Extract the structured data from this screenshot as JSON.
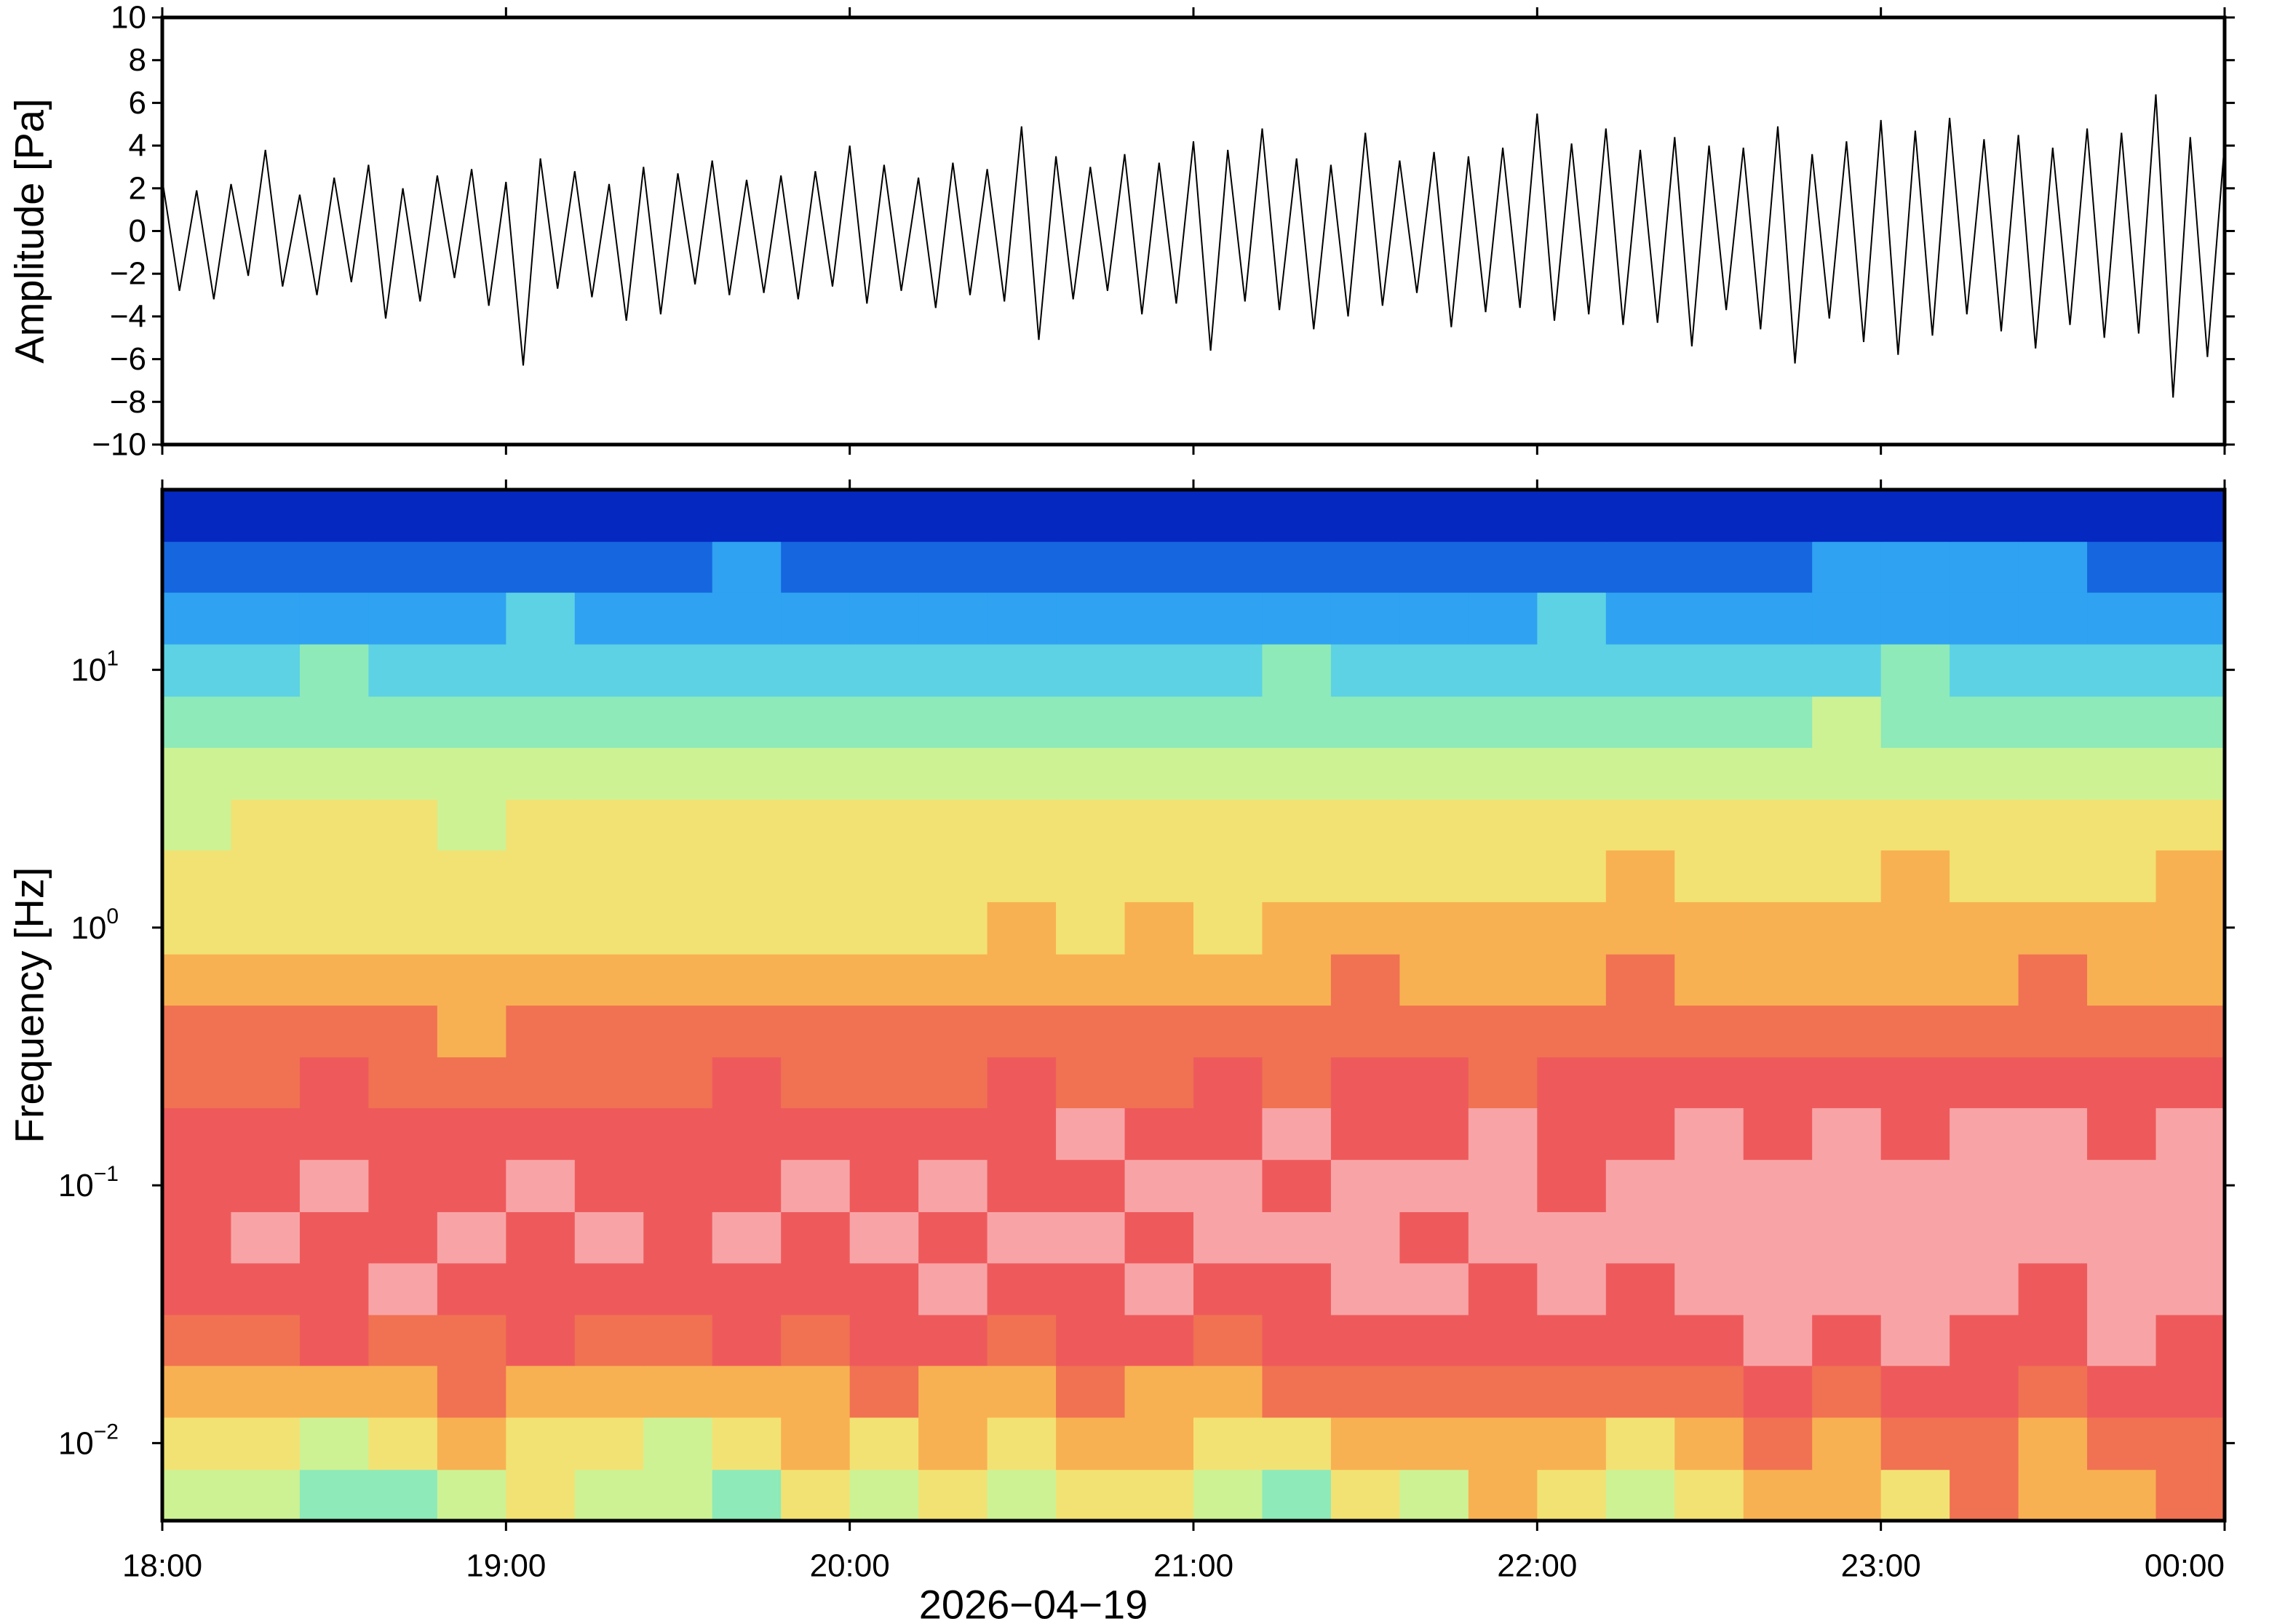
{
  "chart_data": [
    {
      "type": "line",
      "ylabel": "Amplitude [Pa]",
      "color": "#000000",
      "xlim": [
        18,
        24
      ],
      "ylim": [
        -10,
        10
      ],
      "yticks": [
        {
          "value": -10,
          "label": "−10"
        },
        {
          "value": -8,
          "label": "−8"
        },
        {
          "value": -6,
          "label": "−6"
        },
        {
          "value": -4,
          "label": "−4"
        },
        {
          "value": -2,
          "label": "−2"
        },
        0,
        2,
        4,
        6,
        8,
        10
      ],
      "x": [
        18,
        18.05,
        18.1,
        18.15,
        18.2,
        18.25,
        18.3,
        18.35,
        18.4,
        18.45,
        18.5,
        18.55,
        18.6,
        18.65,
        18.7,
        18.75,
        18.8,
        18.85,
        18.9,
        18.95,
        19,
        19.05,
        19.1,
        19.15,
        19.2,
        19.25,
        19.3,
        19.35,
        19.4,
        19.45,
        19.5,
        19.55,
        19.6,
        19.65,
        19.7,
        19.75,
        19.8,
        19.85,
        19.9,
        19.95,
        20,
        20.05,
        20.1,
        20.15,
        20.2,
        20.25,
        20.3,
        20.35,
        20.4,
        20.45,
        20.5,
        20.55,
        20.6,
        20.65,
        20.7,
        20.75,
        20.8,
        20.85,
        20.9,
        20.95,
        21,
        21.05,
        21.1,
        21.15,
        21.2,
        21.25,
        21.3,
        21.35,
        21.4,
        21.45,
        21.5,
        21.55,
        21.6,
        21.65,
        21.7,
        21.75,
        21.8,
        21.85,
        21.9,
        21.95,
        22,
        22.05,
        22.1,
        22.15,
        22.2,
        22.25,
        22.3,
        22.35,
        22.4,
        22.45,
        22.5,
        22.55,
        22.6,
        22.65,
        22.7,
        22.75,
        22.8,
        22.85,
        22.9,
        22.95,
        23,
        23.05,
        23.1,
        23.15,
        23.2,
        23.25,
        23.3,
        23.35,
        23.4,
        23.45,
        23.5,
        23.55,
        23.6,
        23.65,
        23.7,
        23.75,
        23.8,
        23.85,
        23.9,
        23.95,
        24
      ],
      "values": [
        2.4,
        -2.8,
        1.9,
        -3.2,
        2.2,
        -2.1,
        3.8,
        -2.6,
        1.7,
        -3.0,
        2.5,
        -2.4,
        3.1,
        -4.1,
        2.0,
        -3.3,
        2.6,
        -2.2,
        2.9,
        -3.5,
        2.3,
        -6.3,
        3.4,
        -2.7,
        2.8,
        -3.1,
        2.2,
        -4.2,
        3.0,
        -3.9,
        2.7,
        -2.5,
        3.3,
        -3.0,
        2.4,
        -2.9,
        2.6,
        -3.2,
        2.8,
        -2.6,
        4.0,
        -3.4,
        3.1,
        -2.8,
        2.5,
        -3.6,
        3.2,
        -3.0,
        2.9,
        -3.3,
        4.9,
        -5.1,
        3.5,
        -3.2,
        3.0,
        -2.8,
        3.6,
        -3.9,
        3.2,
        -3.4,
        4.2,
        -5.6,
        3.8,
        -3.3,
        4.8,
        -3.7,
        3.4,
        -4.6,
        3.1,
        -4.0,
        4.6,
        -3.5,
        3.3,
        -2.9,
        3.7,
        -4.5,
        3.5,
        -3.8,
        3.9,
        -3.6,
        5.5,
        -4.2,
        4.1,
        -3.9,
        4.8,
        -4.4,
        3.8,
        -4.3,
        4.4,
        -5.4,
        4.0,
        -3.7,
        3.9,
        -4.6,
        4.9,
        -6.2,
        3.6,
        -4.1,
        4.2,
        -5.2,
        5.2,
        -5.8,
        4.7,
        -4.9,
        5.3,
        -3.9,
        4.3,
        -4.7,
        4.5,
        -5.5,
        3.9,
        -4.4,
        4.8,
        -5.0,
        4.6,
        -4.8,
        6.4,
        -7.8,
        4.4,
        -5.9,
        4.1
      ]
    },
    {
      "type": "heatmap",
      "ylabel": "Frequency [Hz]",
      "xlabel": "2026−04−19",
      "xlim": [
        18,
        24
      ],
      "ylim": [
        0.005,
        50
      ],
      "ylog": true,
      "xticks": [
        {
          "value": 18,
          "label": "18:00"
        },
        {
          "value": 19,
          "label": "19:00"
        },
        {
          "value": 20,
          "label": "20:00"
        },
        {
          "value": 21,
          "label": "21:00"
        },
        {
          "value": 22,
          "label": "22:00"
        },
        {
          "value": 23,
          "label": "23:00"
        },
        {
          "value": 24,
          "label": "00:00"
        }
      ],
      "yticks": [
        {
          "value": 0.01,
          "label": "10",
          "exponent": "−2"
        },
        {
          "value": 0.1,
          "label": "10",
          "exponent": "−1"
        },
        {
          "value": 1,
          "label": "10",
          "exponent": "0"
        },
        {
          "value": 10,
          "label": "10",
          "exponent": "1"
        }
      ],
      "x": [
        18,
        18.2,
        18.4,
        18.6,
        18.8,
        19,
        19.2,
        19.4,
        19.6,
        19.8,
        20,
        20.2,
        20.4,
        20.6,
        20.8,
        21,
        21.2,
        21.4,
        21.6,
        21.8,
        22,
        22.2,
        22.4,
        22.6,
        22.8,
        23,
        23.2,
        23.4,
        23.6,
        23.8,
        24
      ],
      "y": [
        0.005,
        0.0079,
        0.0126,
        0.02,
        0.0315,
        0.05,
        0.079,
        0.126,
        0.2,
        0.315,
        0.5,
        0.79,
        1.26,
        2,
        3.15,
        5,
        7.9,
        12.6,
        20,
        31.5,
        50
      ],
      "colorscale": [
        "#0428c0",
        "#1666e0",
        "#2fa2f2",
        "#5cd2e4",
        "#8eeab8",
        "#cdf294",
        "#f2e274",
        "#f8b152",
        "#f07252",
        "#ee5a5c",
        "#f8a4a6"
      ],
      "z": [
        [
          5,
          5,
          4,
          4,
          5,
          6,
          5,
          5,
          4,
          6,
          5,
          6,
          5,
          6,
          6,
          5,
          4,
          6,
          5,
          7,
          6,
          5,
          6,
          7,
          7,
          6,
          8,
          7,
          7,
          8
        ],
        [
          6,
          6,
          5,
          6,
          7,
          6,
          6,
          5,
          6,
          7,
          6,
          7,
          6,
          7,
          7,
          6,
          6,
          7,
          7,
          7,
          7,
          6,
          7,
          8,
          7,
          8,
          8,
          7,
          8,
          8
        ],
        [
          7,
          7,
          7,
          7,
          8,
          7,
          7,
          7,
          7,
          7,
          8,
          7,
          7,
          8,
          7,
          7,
          8,
          8,
          8,
          8,
          8,
          8,
          8,
          9,
          8,
          9,
          9,
          8,
          9,
          9
        ],
        [
          8,
          8,
          9,
          8,
          8,
          9,
          8,
          8,
          9,
          8,
          9,
          9,
          8,
          9,
          9,
          8,
          9,
          9,
          9,
          9,
          9,
          9,
          9,
          10,
          9,
          10,
          9,
          9,
          10,
          9
        ],
        [
          9,
          9,
          9,
          10,
          9,
          9,
          9,
          9,
          9,
          9,
          9,
          10,
          9,
          9,
          10,
          9,
          9,
          10,
          10,
          9,
          10,
          9,
          10,
          10,
          10,
          10,
          10,
          9,
          10,
          10
        ],
        [
          9,
          10,
          9,
          9,
          10,
          9,
          10,
          9,
          10,
          9,
          10,
          9,
          10,
          10,
          9,
          10,
          10,
          10,
          9,
          10,
          10,
          10,
          10,
          10,
          10,
          10,
          10,
          10,
          10,
          10
        ],
        [
          9,
          9,
          10,
          9,
          9,
          10,
          9,
          9,
          9,
          10,
          9,
          10,
          9,
          9,
          10,
          10,
          9,
          10,
          10,
          10,
          9,
          10,
          10,
          10,
          10,
          10,
          10,
          10,
          10,
          10
        ],
        [
          9,
          9,
          9,
          9,
          9,
          9,
          9,
          9,
          9,
          9,
          9,
          9,
          9,
          10,
          9,
          9,
          10,
          9,
          9,
          10,
          9,
          9,
          10,
          9,
          10,
          9,
          10,
          10,
          9,
          10
        ],
        [
          8,
          8,
          9,
          8,
          8,
          8,
          8,
          8,
          9,
          8,
          8,
          8,
          9,
          8,
          8,
          9,
          8,
          9,
          9,
          8,
          9,
          9,
          9,
          9,
          9,
          9,
          9,
          9,
          9,
          9
        ],
        [
          8,
          8,
          8,
          8,
          7,
          8,
          8,
          8,
          8,
          8,
          8,
          8,
          8,
          8,
          8,
          8,
          8,
          8,
          8,
          8,
          8,
          8,
          8,
          8,
          8,
          8,
          8,
          8,
          8,
          8
        ],
        [
          7,
          7,
          7,
          7,
          7,
          7,
          7,
          7,
          7,
          7,
          7,
          7,
          7,
          7,
          7,
          7,
          7,
          8,
          7,
          7,
          7,
          8,
          7,
          7,
          7,
          7,
          7,
          8,
          7,
          7
        ],
        [
          6,
          6,
          6,
          6,
          6,
          6,
          6,
          6,
          6,
          6,
          6,
          6,
          7,
          6,
          7,
          6,
          7,
          7,
          7,
          7,
          7,
          7,
          7,
          7,
          7,
          7,
          7,
          7,
          7,
          7
        ],
        [
          6,
          6,
          6,
          6,
          6,
          6,
          6,
          6,
          6,
          6,
          6,
          6,
          6,
          6,
          6,
          6,
          6,
          6,
          6,
          6,
          6,
          7,
          6,
          6,
          6,
          7,
          6,
          6,
          6,
          7
        ],
        [
          5,
          6,
          6,
          6,
          5,
          6,
          6,
          6,
          6,
          6,
          6,
          6,
          6,
          6,
          6,
          6,
          6,
          6,
          6,
          6,
          6,
          6,
          6,
          6,
          6,
          6,
          6,
          6,
          6,
          6
        ],
        [
          5,
          5,
          5,
          5,
          5,
          5,
          5,
          5,
          5,
          5,
          5,
          5,
          5,
          5,
          5,
          5,
          5,
          5,
          5,
          5,
          5,
          5,
          5,
          5,
          5,
          5,
          5,
          5,
          5,
          5
        ],
        [
          4,
          4,
          4,
          4,
          4,
          4,
          4,
          4,
          4,
          4,
          4,
          4,
          4,
          4,
          4,
          4,
          4,
          4,
          4,
          4,
          4,
          4,
          4,
          4,
          5,
          4,
          4,
          4,
          4,
          4
        ],
        [
          3,
          3,
          4,
          3,
          3,
          3,
          3,
          3,
          3,
          3,
          3,
          3,
          3,
          3,
          3,
          3,
          4,
          3,
          3,
          3,
          3,
          3,
          3,
          3,
          3,
          4,
          3,
          3,
          3,
          3
        ],
        [
          2,
          2,
          2,
          2,
          2,
          3,
          2,
          2,
          2,
          2,
          2,
          2,
          2,
          2,
          2,
          2,
          2,
          2,
          2,
          2,
          3,
          2,
          2,
          2,
          2,
          2,
          2,
          2,
          2,
          2
        ],
        [
          1,
          1,
          1,
          1,
          1,
          1,
          1,
          1,
          2,
          1,
          1,
          1,
          1,
          1,
          1,
          1,
          1,
          1,
          1,
          1,
          1,
          1,
          1,
          1,
          2,
          2,
          2,
          2,
          1,
          1
        ],
        [
          0,
          0,
          0,
          0,
          0,
          0,
          0,
          0,
          0,
          0,
          0,
          0,
          0,
          0,
          0,
          0,
          0,
          0,
          0,
          0,
          0,
          0,
          0,
          0,
          0,
          0,
          0,
          0,
          0,
          0
        ]
      ]
    }
  ]
}
